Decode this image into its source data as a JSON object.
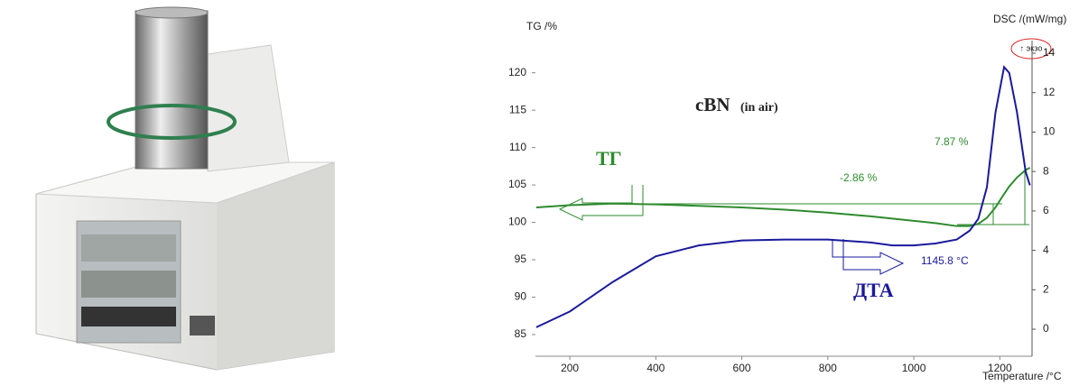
{
  "chart_data": {
    "type": "line",
    "title": "cBN",
    "subtitle": "(in air)",
    "y_label": "TG /%",
    "y2_label": "DSC /(mW/mg)",
    "x_label": "Temperature /°C",
    "x": [
      122,
      200,
      300,
      400,
      500,
      600,
      700,
      800,
      900,
      950,
      1000,
      1050,
      1100,
      1130,
      1150,
      1170,
      1190,
      1210,
      1222,
      1240,
      1260,
      1270
    ],
    "series": [
      {
        "name": "ТГ",
        "color": "#2e8b2e",
        "values": [
          102.0,
          102.3,
          102.5,
          102.4,
          102.2,
          102.0,
          101.7,
          101.3,
          100.8,
          100.5,
          100.2,
          99.9,
          99.5,
          99.5,
          99.8,
          100.6,
          102.0,
          103.8,
          104.8,
          106.0,
          107.0,
          107.3
        ]
      },
      {
        "name": "ДТА",
        "color": "#1a1a9c",
        "axis": "y2",
        "values": [
          0.1,
          0.9,
          2.4,
          3.7,
          4.25,
          4.5,
          4.55,
          4.55,
          4.4,
          4.25,
          4.25,
          4.35,
          4.55,
          5.0,
          5.6,
          7.2,
          11.0,
          13.3,
          13.0,
          11.0,
          8.0,
          7.3
        ]
      }
    ],
    "xlim": [
      120,
      1275
    ],
    "ylim": [
      82.1,
      124.3
    ],
    "y2lim": [
      -1.37,
      14.64
    ],
    "xticks": [
      200,
      400,
      600,
      800,
      1000,
      1200
    ],
    "yticks": [
      85,
      90,
      95,
      100,
      105,
      110,
      115,
      120
    ],
    "y2ticks": [
      0,
      2,
      4,
      6,
      8,
      10,
      12,
      14
    ],
    "annotations": {
      "tg_loss": "-2.86 %",
      "tg_gain": "7.87 %",
      "onset": "1145.8 °C",
      "exo": "↑ экзо"
    }
  }
}
